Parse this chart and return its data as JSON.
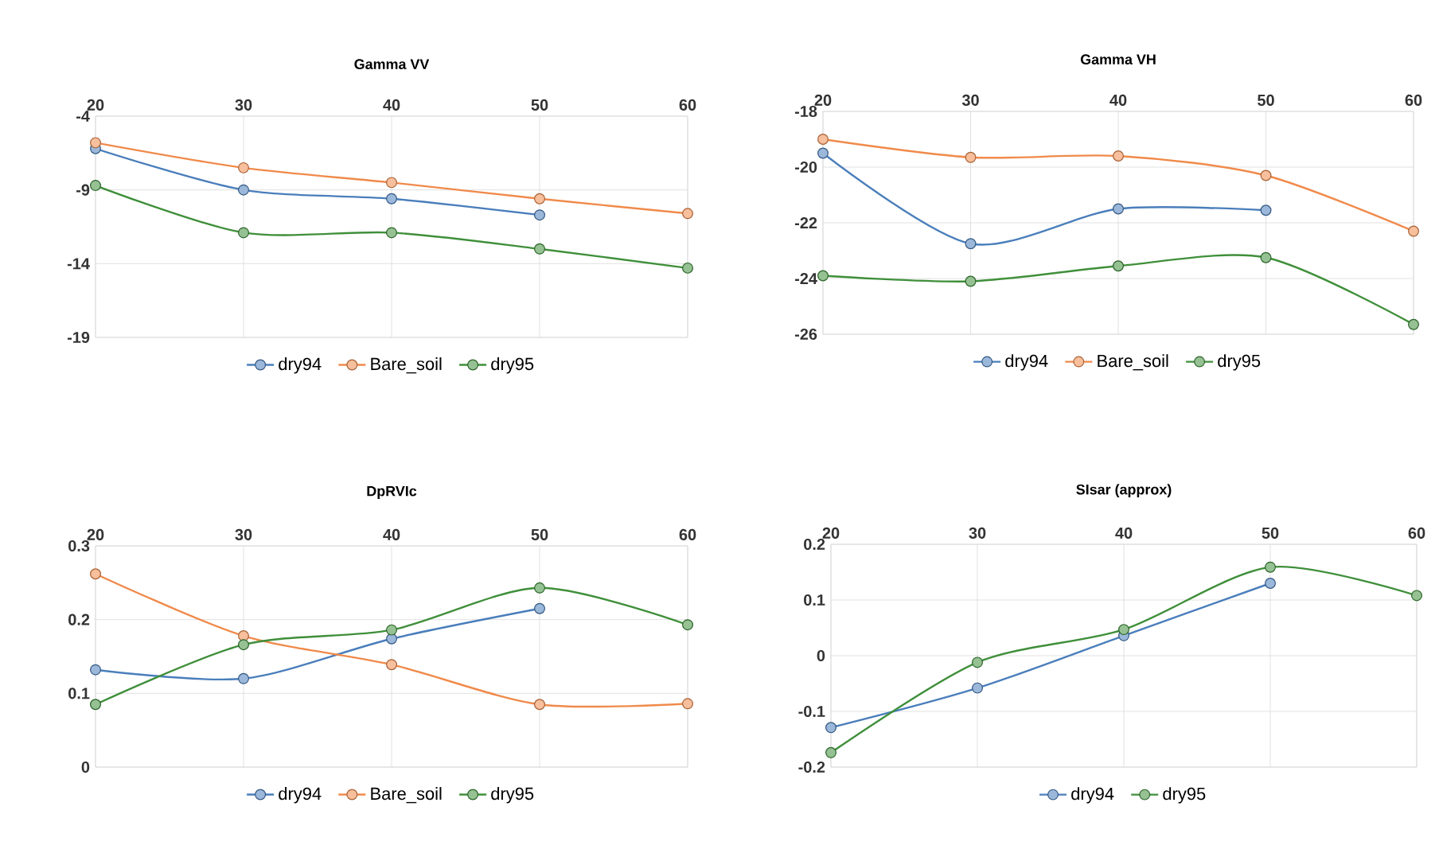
{
  "chart_data": [
    {
      "type": "line",
      "title": "Gamma VV",
      "x": [
        20,
        30,
        40,
        50,
        60
      ],
      "xlim": [
        20,
        60
      ],
      "xticks": [
        20,
        30,
        40,
        50,
        60
      ],
      "ylim": [
        -19,
        -4
      ],
      "yticks": [
        -4,
        -9,
        -14,
        -19
      ],
      "grid": true,
      "legend": "bottom",
      "marker": "circle",
      "series": [
        {
          "name": "dry94",
          "color": "#4a7ebb",
          "values": [
            -6.2,
            -9.0,
            -9.6,
            -10.7,
            null
          ]
        },
        {
          "name": "Bare_soil",
          "color": "#f08a4b",
          "values": [
            -5.8,
            -7.5,
            -8.5,
            -9.6,
            -10.6
          ]
        },
        {
          "name": "dry95",
          "color": "#3f8f3a",
          "values": [
            -8.7,
            -11.9,
            -11.9,
            -13.0,
            -14.3
          ]
        }
      ]
    },
    {
      "type": "line",
      "title": "Gamma VH",
      "x": [
        20,
        30,
        40,
        50,
        60
      ],
      "xlim": [
        20,
        60
      ],
      "xticks": [
        20,
        30,
        40,
        50,
        60
      ],
      "ylim": [
        -26,
        -18
      ],
      "yticks": [
        -18,
        -20,
        -22,
        -24,
        -26
      ],
      "grid": true,
      "legend": "bottom",
      "marker": "circle",
      "series": [
        {
          "name": "dry94",
          "color": "#4a7ebb",
          "values": [
            -19.5,
            -22.75,
            -21.5,
            -21.55,
            null
          ]
        },
        {
          "name": "Bare_soil",
          "color": "#f08a4b",
          "values": [
            -19.0,
            -19.65,
            -19.6,
            -20.3,
            -22.3
          ]
        },
        {
          "name": "dry95",
          "color": "#3f8f3a",
          "values": [
            -23.9,
            -24.1,
            -23.55,
            -23.25,
            -25.65
          ]
        }
      ]
    },
    {
      "type": "line",
      "title": "DpRVIc",
      "x": [
        20,
        30,
        40,
        50,
        60
      ],
      "xlim": [
        20,
        60
      ],
      "xticks": [
        20,
        30,
        40,
        50,
        60
      ],
      "ylim": [
        0,
        0.3
      ],
      "yticks": [
        0,
        0.1,
        0.2,
        0.3
      ],
      "grid": true,
      "legend": "bottom",
      "marker": "circle",
      "series": [
        {
          "name": "dry94",
          "color": "#4a7ebb",
          "values": [
            0.132,
            0.12,
            0.174,
            0.215,
            null
          ]
        },
        {
          "name": "Bare_soil",
          "color": "#f08a4b",
          "values": [
            0.262,
            0.178,
            0.139,
            0.085,
            0.086
          ]
        },
        {
          "name": "dry95",
          "color": "#3f8f3a",
          "values": [
            0.085,
            0.166,
            0.186,
            0.243,
            0.193
          ]
        }
      ]
    },
    {
      "type": "line",
      "title": "SIsar (approx)",
      "x": [
        20,
        30,
        40,
        50,
        60
      ],
      "xlim": [
        20,
        60
      ],
      "xticks": [
        20,
        30,
        40,
        50,
        60
      ],
      "ylim": [
        -0.2,
        0.2
      ],
      "yticks": [
        0.2,
        0.1,
        0,
        -0.1,
        -0.2
      ],
      "grid": true,
      "legend": "bottom",
      "marker": "circle",
      "series": [
        {
          "name": "dry94",
          "color": "#4a7ebb",
          "values": [
            -0.129,
            -0.058,
            0.036,
            0.13,
            null
          ]
        },
        {
          "name": "dry95",
          "color": "#3f8f3a",
          "values": [
            -0.174,
            -0.012,
            0.047,
            0.159,
            0.108
          ]
        }
      ]
    }
  ]
}
